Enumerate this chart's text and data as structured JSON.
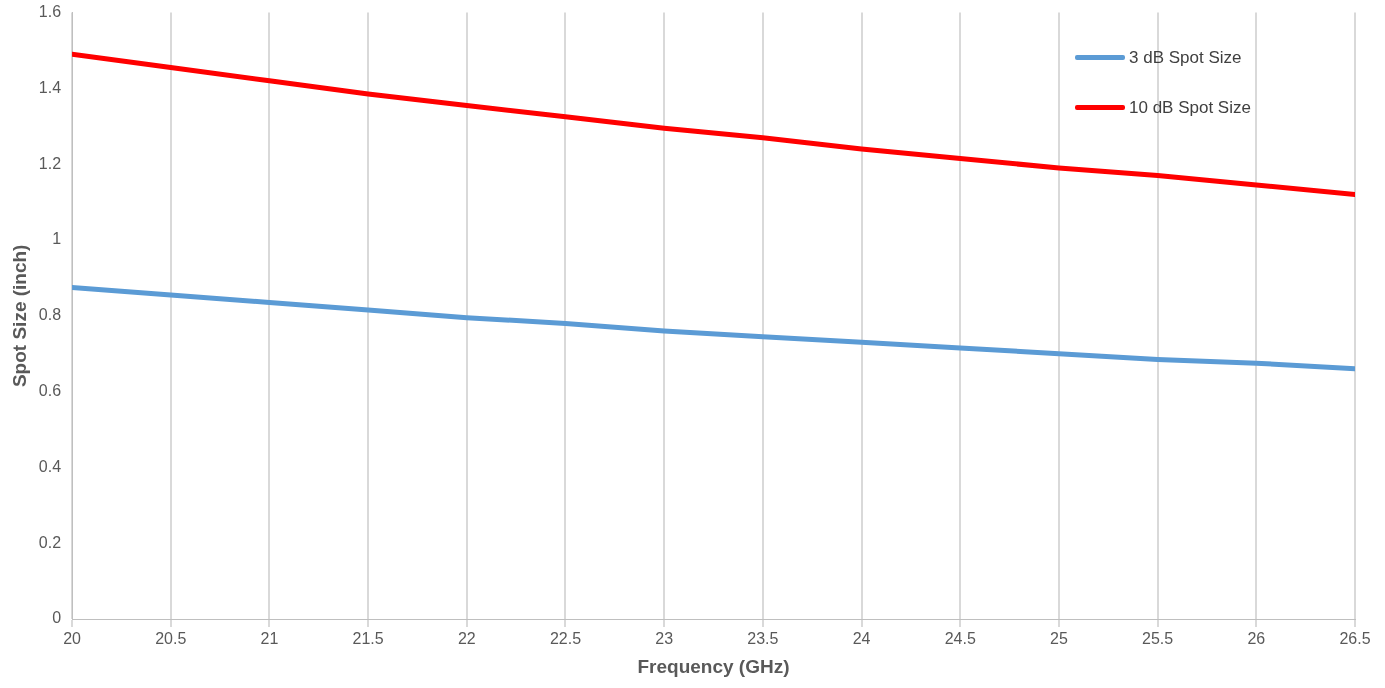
{
  "chart_data": {
    "type": "line",
    "xlabel": "Frequency (GHz)",
    "ylabel": "Spot Size (inch)",
    "x": [
      20,
      20.5,
      21,
      21.5,
      22,
      22.5,
      23,
      23.5,
      24,
      24.5,
      25,
      25.5,
      26,
      26.5
    ],
    "series": [
      {
        "name": "3 dB Spot Size",
        "color": "#5b9bd5",
        "values": [
          0.875,
          0.855,
          0.835,
          0.815,
          0.795,
          0.78,
          0.76,
          0.745,
          0.73,
          0.715,
          0.7,
          0.685,
          0.675,
          0.66
        ]
      },
      {
        "name": "10 dB Spot Size",
        "color": "#ff0000",
        "values": [
          1.49,
          1.455,
          1.42,
          1.385,
          1.355,
          1.325,
          1.295,
          1.27,
          1.24,
          1.215,
          1.19,
          1.17,
          1.145,
          1.12
        ]
      }
    ],
    "xlim": [
      20,
      26.5
    ],
    "xticks": [
      20,
      20.5,
      21,
      21.5,
      22,
      22.5,
      23,
      23.5,
      24,
      24.5,
      25,
      25.5,
      26,
      26.5
    ],
    "ylim": [
      0,
      1.6
    ],
    "yticks": [
      0,
      0.2,
      0.4,
      0.6,
      0.8,
      1,
      1.2,
      1.4,
      1.6
    ],
    "grid": "x",
    "legend": "top right",
    "marker": "none",
    "line_style": "solid"
  }
}
